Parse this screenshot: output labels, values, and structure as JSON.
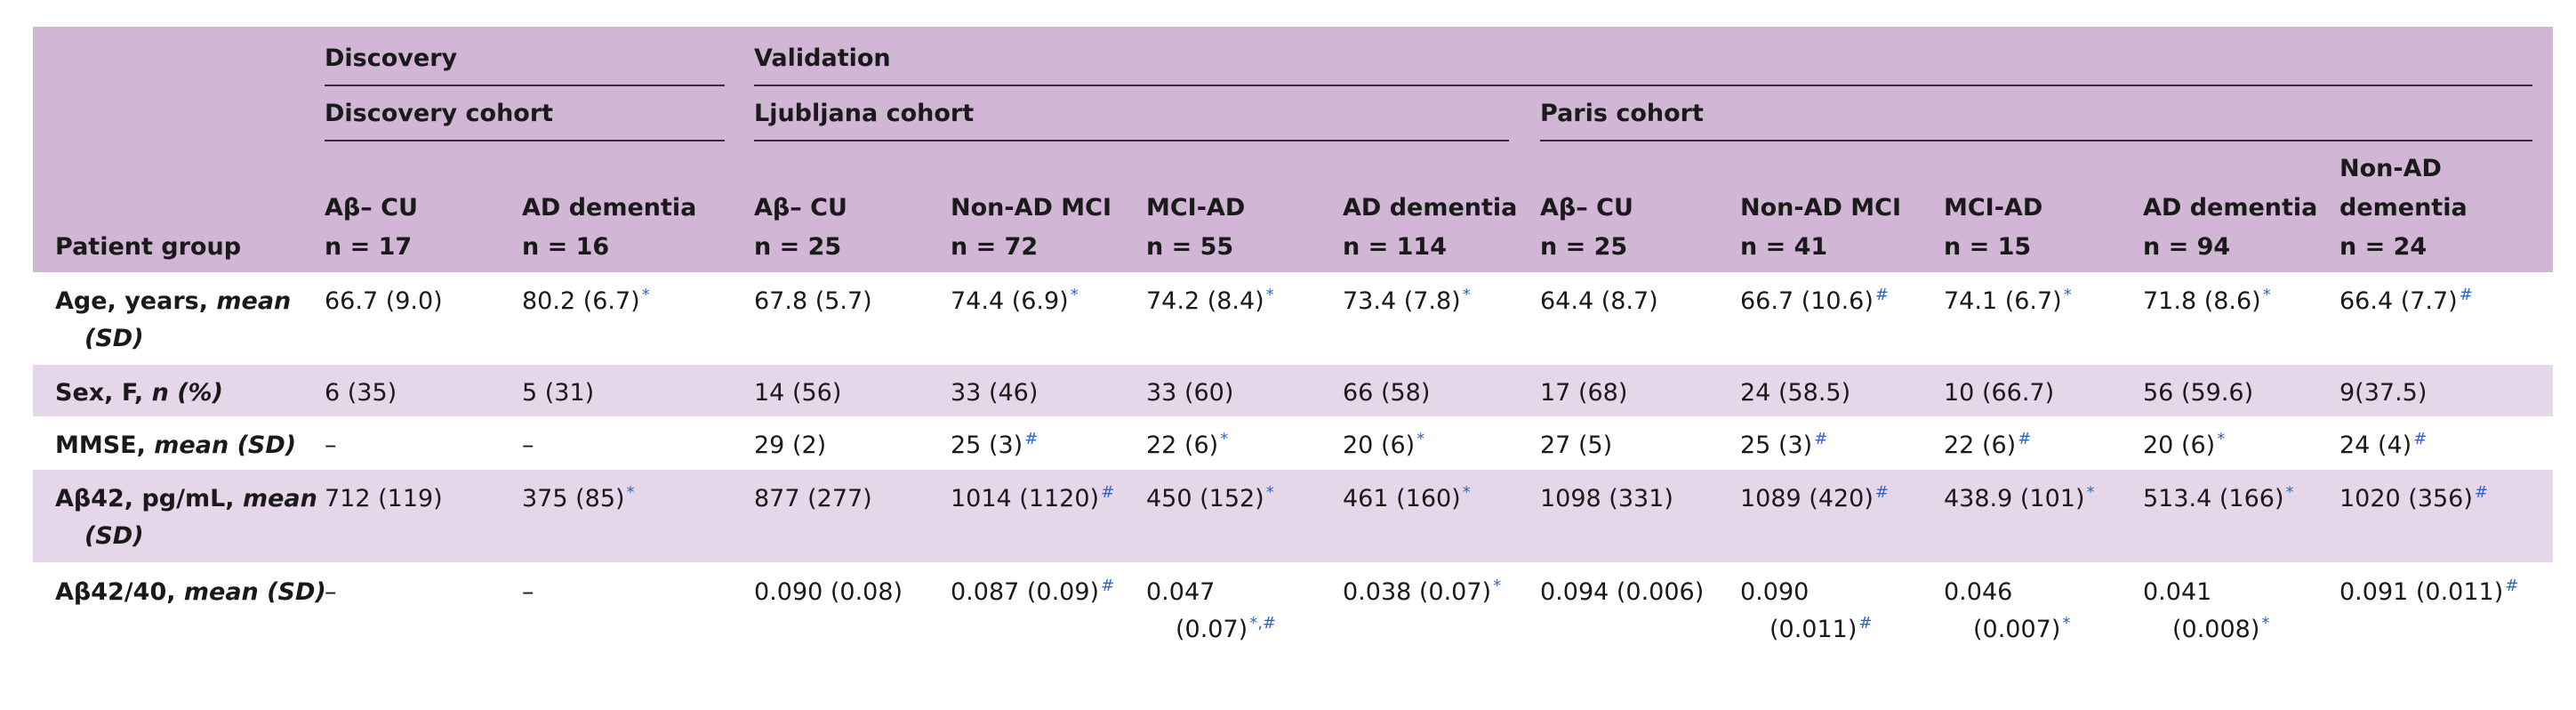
{
  "header": {
    "groups": {
      "discovery": "Discovery",
      "validation": "Validation"
    },
    "cohorts": {
      "discovery": "Discovery cohort",
      "ljubljana": "Ljubljana cohort",
      "paris": "Paris cohort"
    },
    "row_label": "Patient group",
    "columns": [
      {
        "name": "Aβ– CU",
        "n": "n = 17"
      },
      {
        "name": "AD dementia",
        "n": "n = 16"
      },
      {
        "name": "Aβ– CU",
        "n": "n = 25"
      },
      {
        "name": "Non-AD MCI",
        "n": "n = 72"
      },
      {
        "name": "MCI-AD",
        "n": "n = 55"
      },
      {
        "name": "AD dementia",
        "n": "n = 114"
      },
      {
        "name": "Aβ– CU",
        "n": "n = 25"
      },
      {
        "name": "Non-AD MCI",
        "n": "n = 41"
      },
      {
        "name": "MCI-AD",
        "n": "n = 15"
      },
      {
        "name": "AD dementia",
        "n": "n = 94"
      },
      {
        "name_line1": "Non-AD",
        "name": "dementia",
        "n": "n = 24"
      }
    ]
  },
  "rows": [
    {
      "label": "Age, years, ",
      "label_em": "mean",
      "label_line2": "(SD)",
      "cells": [
        {
          "v": "66.7 (9.0)",
          "s": ""
        },
        {
          "v": "80.2 (6.7)",
          "s": "*"
        },
        {
          "v": "67.8 (5.7)",
          "s": ""
        },
        {
          "v": "74.4 (6.9)",
          "s": "*"
        },
        {
          "v": "74.2 (8.4)",
          "s": "*"
        },
        {
          "v": "73.4 (7.8)",
          "s": "*"
        },
        {
          "v": "64.4 (8.7)",
          "s": ""
        },
        {
          "v": "66.7 (10.6)",
          "s": "#"
        },
        {
          "v": "74.1 (6.7)",
          "s": "*"
        },
        {
          "v": "71.8 (8.6)",
          "s": "*"
        },
        {
          "v": "66.4 (7.7)",
          "s": "#"
        }
      ]
    },
    {
      "label": "Sex, F, ",
      "label_em": "n (%)",
      "cells": [
        {
          "v": "6 (35)",
          "s": ""
        },
        {
          "v": "5 (31)",
          "s": ""
        },
        {
          "v": "14 (56)",
          "s": ""
        },
        {
          "v": "33 (46)",
          "s": ""
        },
        {
          "v": "33 (60)",
          "s": ""
        },
        {
          "v": "66 (58)",
          "s": ""
        },
        {
          "v": "17 (68)",
          "s": ""
        },
        {
          "v": "24 (58.5)",
          "s": ""
        },
        {
          "v": "10 (66.7)",
          "s": ""
        },
        {
          "v": "56 (59.6)",
          "s": ""
        },
        {
          "v": "9(37.5)",
          "s": ""
        }
      ]
    },
    {
      "label": "MMSE, ",
      "label_em": "mean (SD)",
      "cells": [
        {
          "v": "–",
          "s": ""
        },
        {
          "v": "–",
          "s": ""
        },
        {
          "v": "29 (2)",
          "s": ""
        },
        {
          "v": "25 (3)",
          "s": "#"
        },
        {
          "v": "22 (6)",
          "s": "*"
        },
        {
          "v": "20 (6)",
          "s": "*"
        },
        {
          "v": "27 (5)",
          "s": ""
        },
        {
          "v": "25 (3)",
          "s": "#"
        },
        {
          "v": "22 (6)",
          "s": "#"
        },
        {
          "v": "20 (6)",
          "s": "*"
        },
        {
          "v": "24 (4)",
          "s": "#"
        }
      ]
    },
    {
      "label": "Aβ42, pg/mL, ",
      "label_em": "mean",
      "label_line2": "(SD)",
      "cells": [
        {
          "v": "712 (119)",
          "s": ""
        },
        {
          "v": "375 (85)",
          "s": "*"
        },
        {
          "v": "877 (277)",
          "s": ""
        },
        {
          "v": "1014 (1120)",
          "s": "#"
        },
        {
          "v": "450 (152)",
          "s": "*"
        },
        {
          "v": "461 (160)",
          "s": "*"
        },
        {
          "v": "1098 (331)",
          "s": ""
        },
        {
          "v": "1089 (420)",
          "s": "#"
        },
        {
          "v": "438.9 (101)",
          "s": "*"
        },
        {
          "v": "513.4 (166)",
          "s": "*"
        },
        {
          "v": "1020 (356)",
          "s": "#"
        }
      ]
    },
    {
      "label": "Aβ42/40, ",
      "label_em": "mean (SD)",
      "cells": [
        {
          "v": "–",
          "s": ""
        },
        {
          "v": "–",
          "s": ""
        },
        {
          "v": "0.090 (0.08)",
          "s": ""
        },
        {
          "v": "0.087 (0.09)",
          "s": "#"
        },
        {
          "v": "0.047",
          "v2": "(0.07)",
          "s": "*,#"
        },
        {
          "v": "0.038 (0.07)",
          "s": "*"
        },
        {
          "v": "0.094 (0.006)",
          "s": ""
        },
        {
          "v": "0.090",
          "v2": "(0.011)",
          "s": "#"
        },
        {
          "v": "0.046",
          "v2": "(0.007)",
          "s": "*"
        },
        {
          "v": "0.041",
          "v2": "(0.008)",
          "s": "*"
        },
        {
          "v": "0.091 (0.011)",
          "s": "#"
        }
      ]
    }
  ]
}
